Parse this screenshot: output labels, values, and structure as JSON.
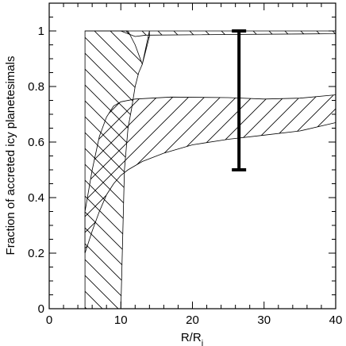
{
  "chart_data": {
    "type": "area",
    "xlabel": "R/R",
    "xlabel_sub": "j",
    "ylabel": "Fraction of accreted icy planetesimals",
    "xlim": [
      0,
      40
    ],
    "ylim": [
      0,
      1.1
    ],
    "grid": false,
    "xticks": [
      0,
      10,
      20,
      30,
      40
    ],
    "yticks": [
      0,
      0.2,
      0.4,
      0.6,
      0.8,
      1
    ],
    "xtick_labels": [
      "0",
      "10",
      "20",
      "30",
      "40"
    ],
    "ytick_labels": [
      "0",
      "0.2",
      "0.4",
      "0.6",
      "0.8",
      "1"
    ],
    "bands": [
      {
        "hatch": "backslash",
        "upper": [
          [
            5,
            1.0
          ],
          [
            13.5,
            1.0
          ],
          [
            40,
            1.0
          ]
        ],
        "lower": [
          [
            5,
            1.0
          ],
          [
            8,
            1.0
          ],
          [
            10,
            1.0
          ],
          [
            11,
            0.99
          ],
          [
            12,
            0.98
          ],
          [
            13.5,
            0.985
          ],
          [
            40,
            0.99
          ]
        ]
      },
      {
        "hatch": "backslash",
        "upper": [
          [
            5,
            1.0
          ],
          [
            9,
            1.0
          ],
          [
            11,
            1.0
          ],
          [
            12,
            0.95
          ],
          [
            13,
            0.88
          ],
          [
            14,
            0.98
          ],
          [
            14,
            1.0
          ]
        ],
        "lower": [
          [
            5,
            0
          ],
          [
            10,
            0
          ],
          [
            10.5,
            0.5
          ],
          [
            11,
            0.65
          ],
          [
            11.5,
            0.72
          ],
          [
            12,
            0.8
          ],
          [
            12.5,
            0.85
          ],
          [
            13,
            0.88
          ]
        ]
      },
      {
        "hatch": "slash",
        "upper": [
          [
            5,
            0.35
          ],
          [
            6,
            0.5
          ],
          [
            7,
            0.62
          ],
          [
            8,
            0.69
          ],
          [
            9,
            0.73
          ],
          [
            10,
            0.745
          ],
          [
            12,
            0.755
          ],
          [
            17,
            0.762
          ],
          [
            25,
            0.76
          ],
          [
            30,
            0.755
          ],
          [
            35,
            0.758
          ],
          [
            40,
            0.77
          ]
        ],
        "lower": [
          [
            5,
            0.2
          ],
          [
            6,
            0.28
          ],
          [
            7,
            0.35
          ],
          [
            8,
            0.41
          ],
          [
            9,
            0.45
          ],
          [
            10,
            0.48
          ],
          [
            11,
            0.5
          ],
          [
            13,
            0.53
          ],
          [
            16,
            0.56
          ],
          [
            20,
            0.59
          ],
          [
            25,
            0.61
          ],
          [
            30,
            0.625
          ],
          [
            35,
            0.64
          ],
          [
            40,
            0.67
          ]
        ]
      }
    ],
    "error_bars": [
      {
        "x": 26.5,
        "low": 0.5,
        "high": 1.0
      }
    ]
  }
}
